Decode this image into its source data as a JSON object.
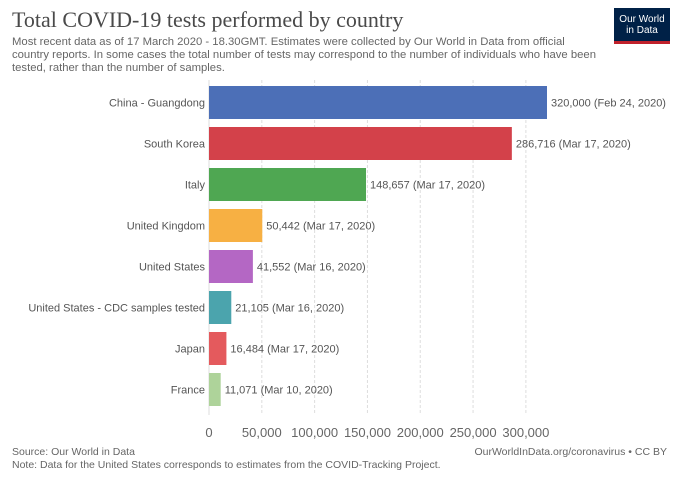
{
  "header": {
    "title": "Total COVID-19 tests performed by country",
    "subtitle": "Most recent data as of 17 March 2020 - 18.30GMT. Estimates were collected by Our World in Data from official country reports. In some cases the total number of tests may correspond to the number of individuals who have been tested, rather than the number of samples.",
    "logo_line1": "Our World",
    "logo_line2": "in Data"
  },
  "footer": {
    "source": "Source: Our World in Data",
    "note": "Note: Data for the United States corresponds to estimates from the COVID-Tracking Project.",
    "url": "OurWorldInData.org/coronavirus • CC BY"
  },
  "chart_data": {
    "type": "bar",
    "orientation": "horizontal",
    "title": "Total COVID-19 tests performed by country",
    "xlabel": "",
    "ylabel": "",
    "xlim": [
      0,
      320000
    ],
    "grid": true,
    "categories": [
      "China - Guangdong",
      "South Korea",
      "Italy",
      "United Kingdom",
      "United States",
      "United States - CDC samples tested",
      "Japan",
      "France"
    ],
    "values": [
      320000,
      286716,
      148657,
      50442,
      41552,
      21105,
      16484,
      11071
    ],
    "value_labels": [
      "320,000 (Feb 24, 2020)",
      "286,716 (Mar 17, 2020)",
      "148,657 (Mar 17, 2020)",
      "50,442 (Mar 17, 2020)",
      "41,552 (Mar 16, 2020)",
      "21,105 (Mar 16, 2020)",
      "16,484 (Mar 17, 2020)",
      "11,071 (Mar 10, 2020)"
    ],
    "colors": [
      "#4c6fb7",
      "#d3414a",
      "#4fa752",
      "#f7b043",
      "#b467c4",
      "#4ba4ad",
      "#e45a5d",
      "#aed39a"
    ],
    "xticks": [
      0,
      50000,
      100000,
      150000,
      200000,
      250000,
      300000
    ],
    "xtick_labels": [
      "0",
      "50,000",
      "100,000",
      "150,000",
      "200,000",
      "250,000",
      "300,000"
    ]
  }
}
